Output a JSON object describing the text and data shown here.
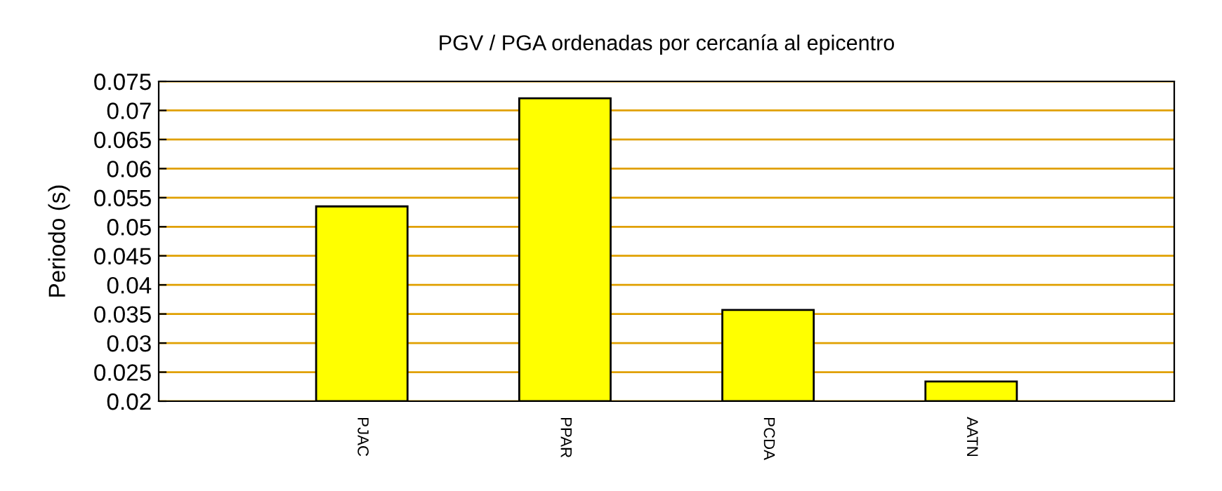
{
  "chart_data": {
    "type": "bar",
    "title": "PGV / PGA ordenadas por cercanía al epicentro",
    "ylabel": "Periodo (s)",
    "categories": [
      "PJAC",
      "PPAR",
      "PCDA",
      "AATN"
    ],
    "values": [
      0.0535,
      0.0721,
      0.0357,
      0.0234
    ],
    "color": "#ffff00",
    "ylim": [
      0.02,
      0.075
    ],
    "yticks": [
      0.02,
      0.025,
      0.03,
      0.035,
      0.04,
      0.045,
      0.05,
      0.055,
      0.06,
      0.065,
      0.07,
      0.075
    ],
    "grid": "y",
    "legend": false
  }
}
